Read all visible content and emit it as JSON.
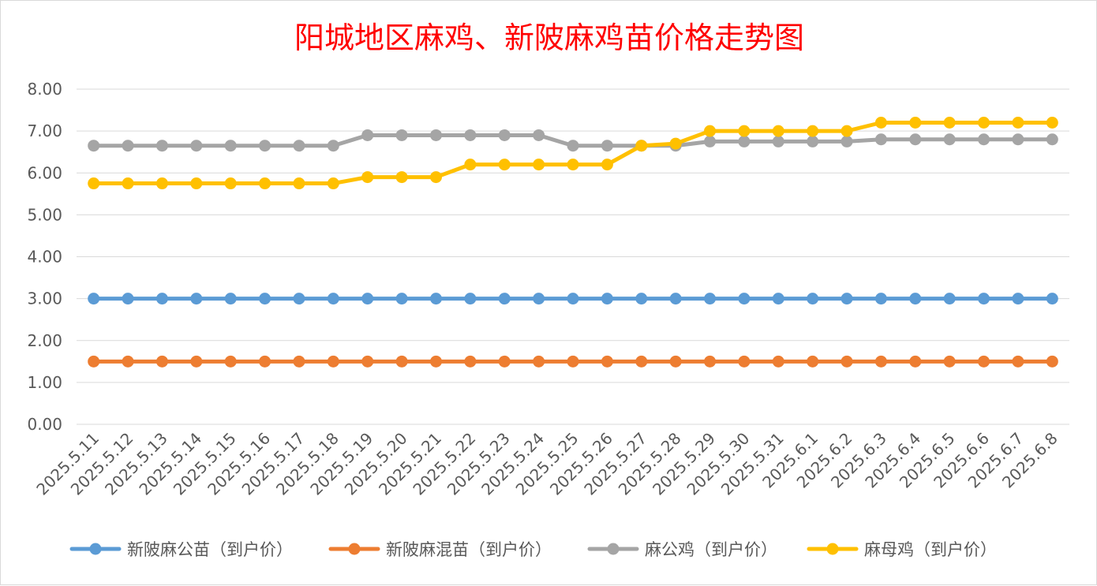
{
  "chart_data": {
    "type": "line",
    "title": "阳城地区麻鸡、新陂麻鸡苗价格走势图",
    "xlabel": "",
    "ylabel": "",
    "ylim": [
      0,
      8
    ],
    "y_ticks": [
      "0.00",
      "1.00",
      "2.00",
      "3.00",
      "4.00",
      "5.00",
      "6.00",
      "7.00",
      "8.00"
    ],
    "y_tick_values": [
      0,
      1,
      2,
      3,
      4,
      5,
      6,
      7,
      8
    ],
    "grid": true,
    "legend_position": "bottom",
    "categories": [
      "2025.5.11",
      "2025.5.12",
      "2025.5.13",
      "2025.5.14",
      "2025.5.15",
      "2025.5.16",
      "2025.5.17",
      "2025.5.18",
      "2025.5.19",
      "2025.5.20",
      "2025.5.21",
      "2025.5.22",
      "2025.5.23",
      "2025.5.24",
      "2025.5.25",
      "2025.5.26",
      "2025.5.27",
      "2025.5.28",
      "2025.5.29",
      "2025.5.30",
      "2025.5.31",
      "2025.6.1",
      "2025.6.2",
      "2025.6.3",
      "2025.6.4",
      "2025.6.5",
      "2025.6.6",
      "2025.6.7",
      "2025.6.8"
    ],
    "series": [
      {
        "name": "新陂麻公苗（到户价）",
        "color": "#5b9bd5",
        "values": [
          3,
          3,
          3,
          3,
          3,
          3,
          3,
          3,
          3,
          3,
          3,
          3,
          3,
          3,
          3,
          3,
          3,
          3,
          3,
          3,
          3,
          3,
          3,
          3,
          3,
          3,
          3,
          3,
          3
        ]
      },
      {
        "name": "新陂麻混苗（到户价）",
        "color": "#ed7d31",
        "values": [
          1.5,
          1.5,
          1.5,
          1.5,
          1.5,
          1.5,
          1.5,
          1.5,
          1.5,
          1.5,
          1.5,
          1.5,
          1.5,
          1.5,
          1.5,
          1.5,
          1.5,
          1.5,
          1.5,
          1.5,
          1.5,
          1.5,
          1.5,
          1.5,
          1.5,
          1.5,
          1.5,
          1.5,
          1.5
        ]
      },
      {
        "name": "麻公鸡（到户价）",
        "color": "#a5a5a5",
        "values": [
          6.65,
          6.65,
          6.65,
          6.65,
          6.65,
          6.65,
          6.65,
          6.65,
          6.9,
          6.9,
          6.9,
          6.9,
          6.9,
          6.9,
          6.65,
          6.65,
          6.65,
          6.65,
          6.75,
          6.75,
          6.75,
          6.75,
          6.75,
          6.8,
          6.8,
          6.8,
          6.8,
          6.8,
          6.8
        ]
      },
      {
        "name": "麻母鸡（到户价）",
        "color": "#ffc000",
        "values": [
          5.75,
          5.75,
          5.75,
          5.75,
          5.75,
          5.75,
          5.75,
          5.75,
          5.9,
          5.9,
          5.9,
          6.2,
          6.2,
          6.2,
          6.2,
          6.2,
          6.65,
          6.7,
          7.0,
          7.0,
          7.0,
          7.0,
          7.0,
          7.2,
          7.2,
          7.2,
          7.2,
          7.2,
          7.2
        ]
      }
    ]
  }
}
